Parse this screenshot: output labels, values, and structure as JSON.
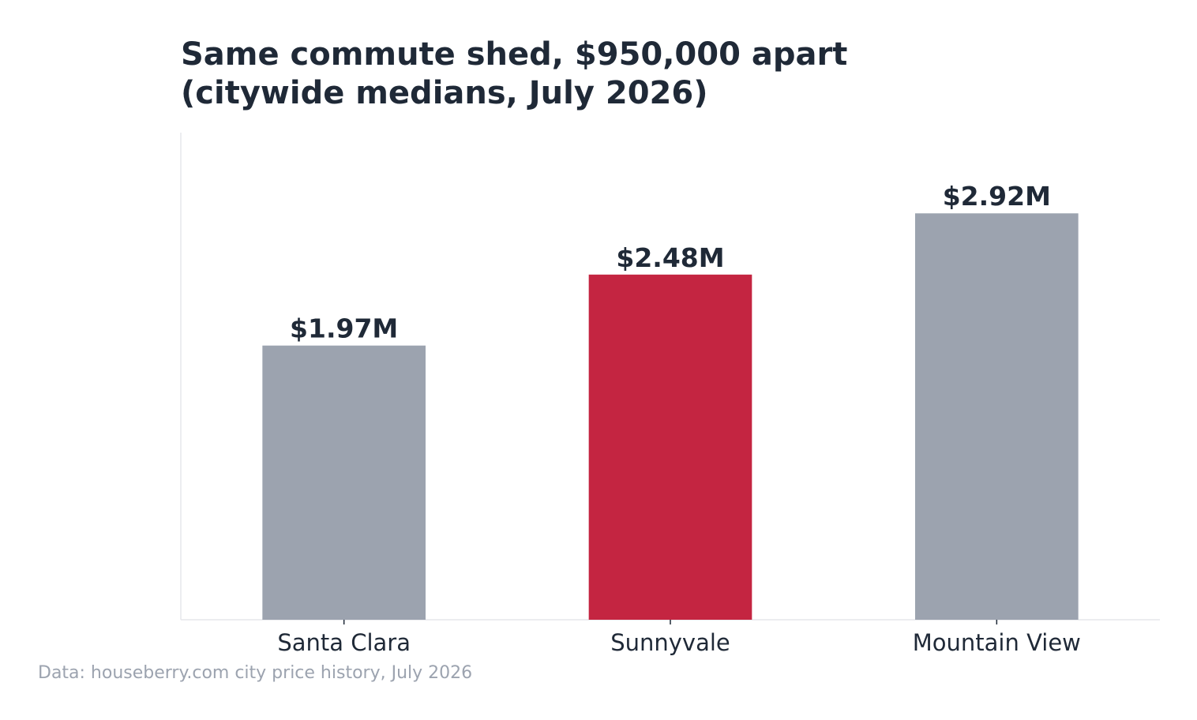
{
  "chart_data": {
    "type": "bar",
    "title": "Same commute shed, $950,000 apart\n(citywide medians, July 2026)",
    "title_lines": [
      "Same commute shed, $950,000 apart",
      "(citywide medians, July 2026)"
    ],
    "categories": [
      "Santa Clara",
      "Sunnyvale",
      "Mountain View"
    ],
    "values": [
      1.97,
      2.48,
      2.92
    ],
    "value_unit": "$M",
    "data_labels": [
      "$1.97M",
      "$2.48M",
      "$2.92M"
    ],
    "highlight_index": 1,
    "ylim": [
      0,
      3.5
    ],
    "xlabel": "",
    "ylabel": "",
    "grid": false,
    "legend": "none",
    "colors": {
      "default_bar": "#9ca3af",
      "highlight_bar": "#c42541",
      "text": "#1f2937",
      "axis": "#e5e7eb",
      "note": "#9ca3af"
    }
  },
  "source_note": "Data: houseberry.com city price history, July 2026"
}
